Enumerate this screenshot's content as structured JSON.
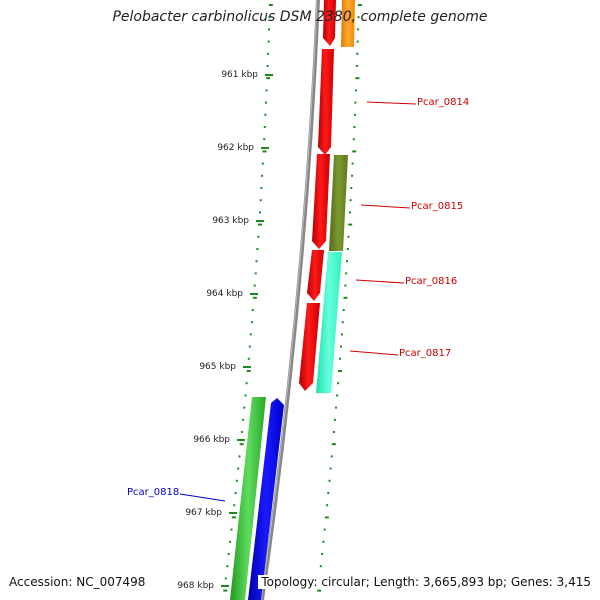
{
  "title": "Pelobacter carbinolicus DSM 2380, complete genome",
  "footer": {
    "accession": "Accession: NC_007498",
    "topology": "Topology: circular; Length: 3,665,893 bp; Genes: 3,415"
  },
  "ticks": [
    {
      "label": "961 kbp"
    },
    {
      "label": "962 kbp"
    },
    {
      "label": "963 kbp"
    },
    {
      "label": "964 kbp"
    },
    {
      "label": "965 kbp"
    },
    {
      "label": "966 kbp"
    },
    {
      "label": "967 kbp"
    },
    {
      "label": "968 kbp"
    }
  ],
  "gene_labels": [
    {
      "name": "Pcar_0814",
      "strand": "plus",
      "color": "#cc0000"
    },
    {
      "name": "Pcar_0815",
      "strand": "plus",
      "color": "#cc0000"
    },
    {
      "name": "Pcar_0816",
      "strand": "plus",
      "color": "#cc0000"
    },
    {
      "name": "Pcar_0817",
      "strand": "plus",
      "color": "#cc0000"
    },
    {
      "name": "Pcar_0818",
      "strand": "minus",
      "color": "#0000cc"
    }
  ],
  "colors": {
    "cds_red": "#ff0000",
    "orange": "#ff9900",
    "olive": "#6b8e23",
    "aquamarine": "#33ffcc",
    "green": "#33cc33",
    "blue": "#0000ee",
    "backbone": "#888888",
    "dots": "#1a8a1a"
  }
}
